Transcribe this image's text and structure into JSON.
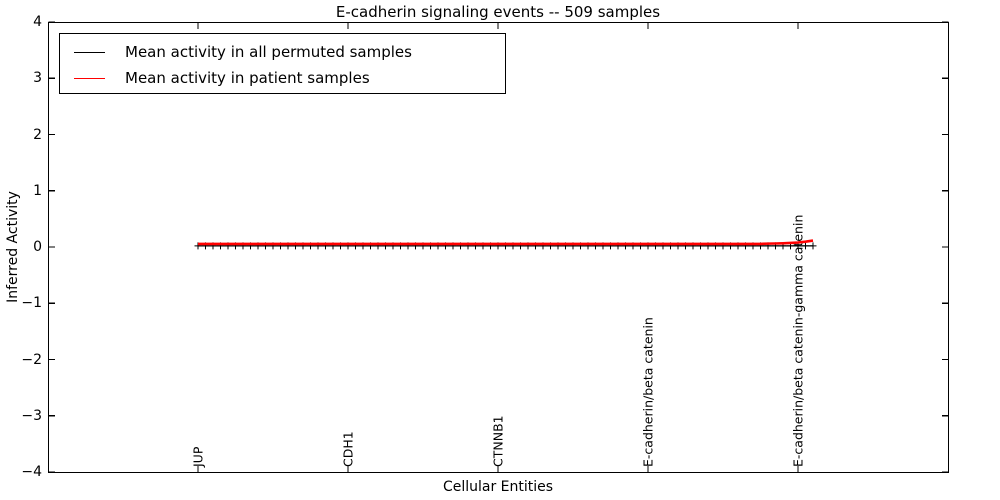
{
  "title": "E-cadherin signaling events -- 509 samples",
  "axes": {
    "xlabel": "Cellular Entities",
    "ylabel": "Inferred Activity",
    "ytick_labels": [
      "4",
      "3",
      "2",
      "1",
      "0",
      "−1",
      "−2",
      "−3",
      "−4"
    ]
  },
  "legend": {
    "items": [
      {
        "label": "Mean activity in all permuted samples",
        "color": "#000000"
      },
      {
        "label": "Mean activity in patient samples",
        "color": "#ff0000"
      }
    ],
    "position": "upper left"
  },
  "chart_data": {
    "type": "line",
    "title": "E-cadherin signaling events -- 509 samples",
    "xlabel": "Cellular Entities",
    "ylabel": "Inferred Activity",
    "ylim": [
      -4,
      4
    ],
    "yticks": [
      4,
      3,
      2,
      1,
      0,
      -1,
      -2,
      -3,
      -4
    ],
    "grid": false,
    "n_points": 83,
    "xtick_labeled_indices": [
      0,
      20,
      40,
      60,
      80
    ],
    "xtick_labels": [
      "JUP",
      "CDH1",
      "CTNNB1",
      "E-cadherin/beta catenin",
      "E-cadherin/beta catenin-gamma catenin"
    ],
    "series": [
      {
        "name": "Mean activity in all permuted samples",
        "color": "#000000",
        "marker": "+",
        "values": {
          "base": 0.02,
          "overrides": {}
        }
      },
      {
        "name": "Mean activity in patient samples",
        "color": "#ff0000",
        "marker": "none",
        "values": {
          "base": 0.055,
          "overrides": {
            "76": 0.06,
            "77": 0.062,
            "78": 0.066,
            "79": 0.072,
            "80": 0.08,
            "81": 0.095,
            "82": 0.115
          }
        }
      }
    ],
    "legend_position": "upper left"
  }
}
